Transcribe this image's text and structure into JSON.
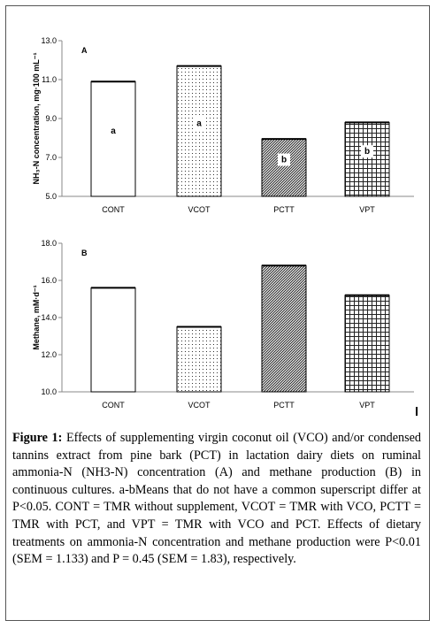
{
  "chart_data": [
    {
      "type": "bar",
      "panel_label": "A",
      "ylabel": "NH₃-N concentration, mg·100 mL⁻¹",
      "categories": [
        "CONT",
        "VCOT",
        "PCTT",
        "VPT"
      ],
      "values": [
        10.9,
        11.7,
        7.95,
        8.8
      ],
      "significance": [
        "a",
        "a",
        "b",
        "b"
      ],
      "ylim": [
        5.0,
        13.0
      ],
      "yticks": [
        "5.0",
        "7.0",
        "9.0",
        "11.0",
        "13.0"
      ],
      "patterns": [
        "none",
        "dots",
        "diagonal",
        "grid"
      ],
      "grid": false
    },
    {
      "type": "bar",
      "panel_label": "B",
      "ylabel": "Methane, mM·d⁻¹",
      "categories": [
        "CONT",
        "VCOT",
        "PCTT",
        "VPT"
      ],
      "values": [
        15.6,
        13.5,
        16.8,
        15.2
      ],
      "significance": [
        "",
        "",
        "",
        ""
      ],
      "ylim": [
        10.0,
        18.0
      ],
      "yticks": [
        "10.0",
        "12.0",
        "14.0",
        "16.0",
        "18.0"
      ],
      "patterns": [
        "none",
        "dots",
        "diagonal",
        "grid"
      ],
      "grid": false
    }
  ],
  "caption": {
    "label": "Figure 1:",
    "text": "Effects of supplementing virgin coconut oil (VCO) and/or condensed tannins extract from pine bark (PCT) in lactation dairy diets on ruminal ammonia-N (NH3-N) concentration (A) and methane production (B) in continuous cultures. a-bMeans that do not have a common superscript differ at P<0.05. CONT = TMR without supplement, VCOT = TMR with VCO, PCTT = TMR with PCT, and VPT = TMR with VCO and PCT. Effects of dietary treatments on ammonia-N concentration and methane production were P<0.01 (SEM = 1.133) and P = 0.45 (SEM = 1.83), respectively."
  }
}
